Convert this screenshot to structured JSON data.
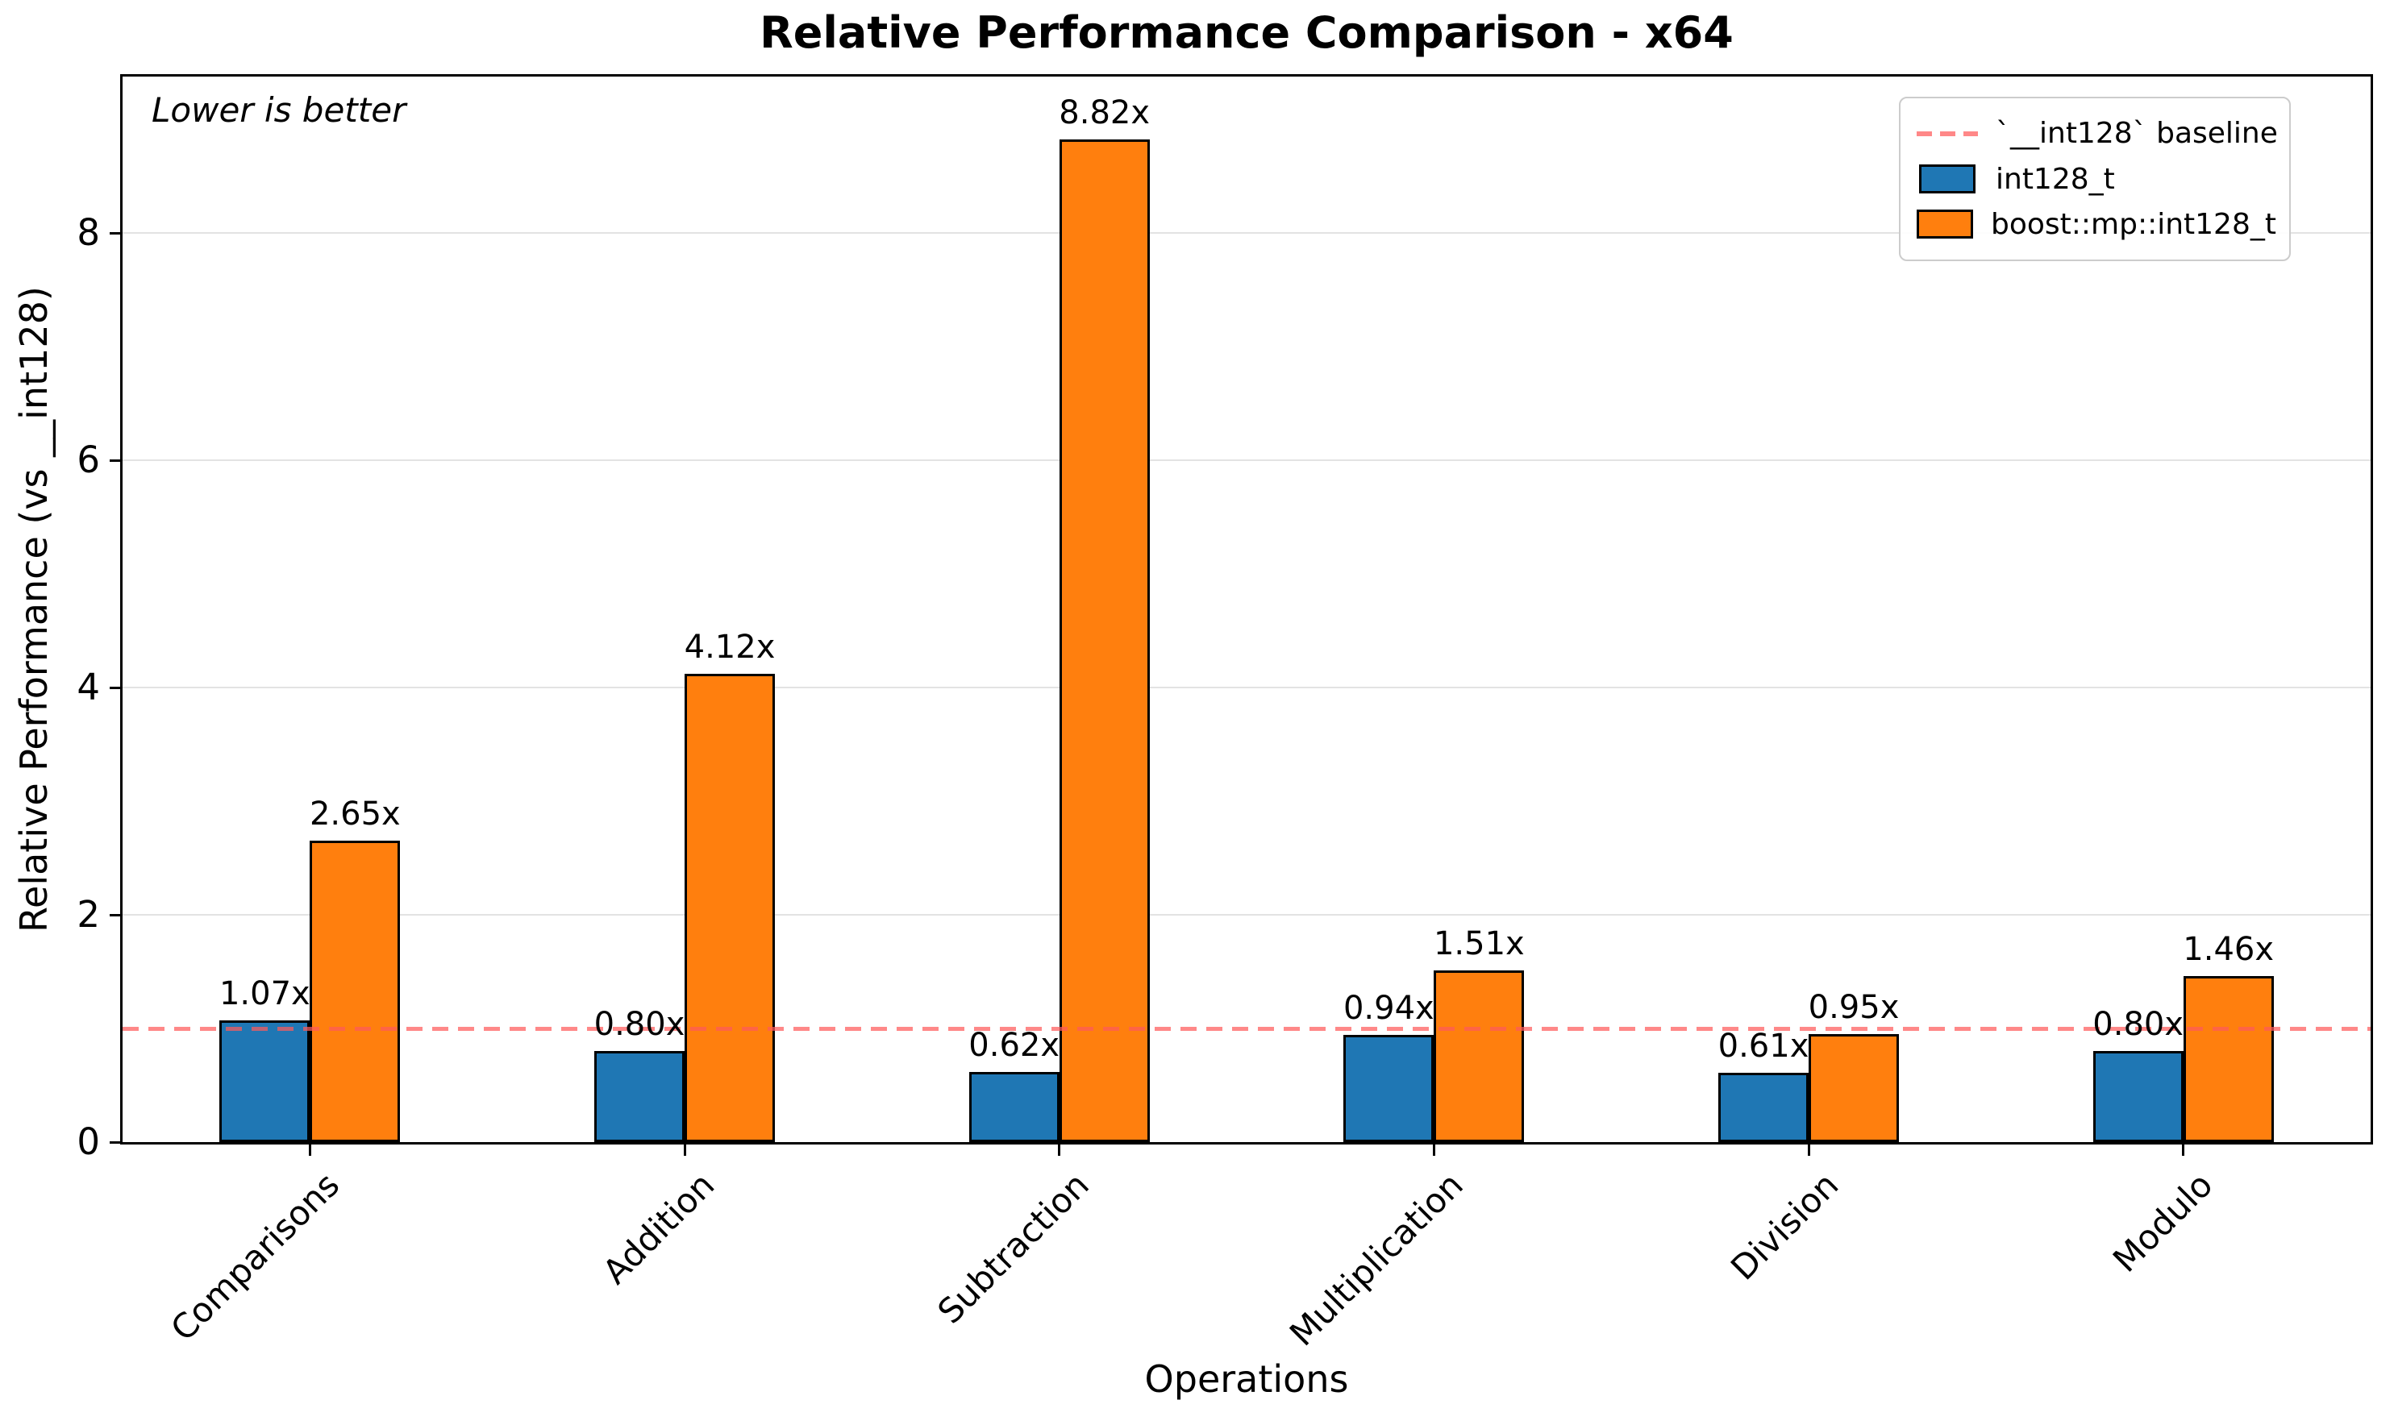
{
  "background": "#ffffff",
  "chart_data": {
    "type": "bar",
    "title": "Relative Performance Comparison - x64",
    "xlabel": "Operations",
    "ylabel": "Relative Performance (vs __int128)",
    "annotation": "Lower is better",
    "categories": [
      "Comparisons",
      "Addition",
      "Subtraction",
      "Multiplication",
      "Division",
      "Modulo"
    ],
    "series": [
      {
        "name": "int128_t",
        "color": "#1f77b4",
        "edge_color": "#000000",
        "values": [
          1.07,
          0.8,
          0.62,
          0.94,
          0.61,
          0.8
        ],
        "value_labels": [
          "1.07x",
          "0.80x",
          "0.62x",
          "0.94x",
          "0.61x",
          "0.80x"
        ]
      },
      {
        "name": "boost::mp::int128_t",
        "color": "#ff7f0e",
        "edge_color": "#000000",
        "values": [
          2.65,
          4.12,
          8.82,
          1.51,
          0.95,
          1.46
        ],
        "value_labels": [
          "2.65x",
          "4.12x",
          "8.82x",
          "1.51x",
          "0.95x",
          "1.46x"
        ]
      }
    ],
    "baseline": {
      "value": 1.0,
      "label": "`__int128` baseline",
      "color": "#ff5a5a",
      "style": "dashed"
    },
    "y_ticks": [
      0,
      2,
      4,
      6,
      8
    ],
    "ylim": [
      0,
      9.38
    ],
    "grid": true,
    "grid_color": "#e3e3e3",
    "x_tick_rotation": 45,
    "legend_position": "upper right"
  }
}
